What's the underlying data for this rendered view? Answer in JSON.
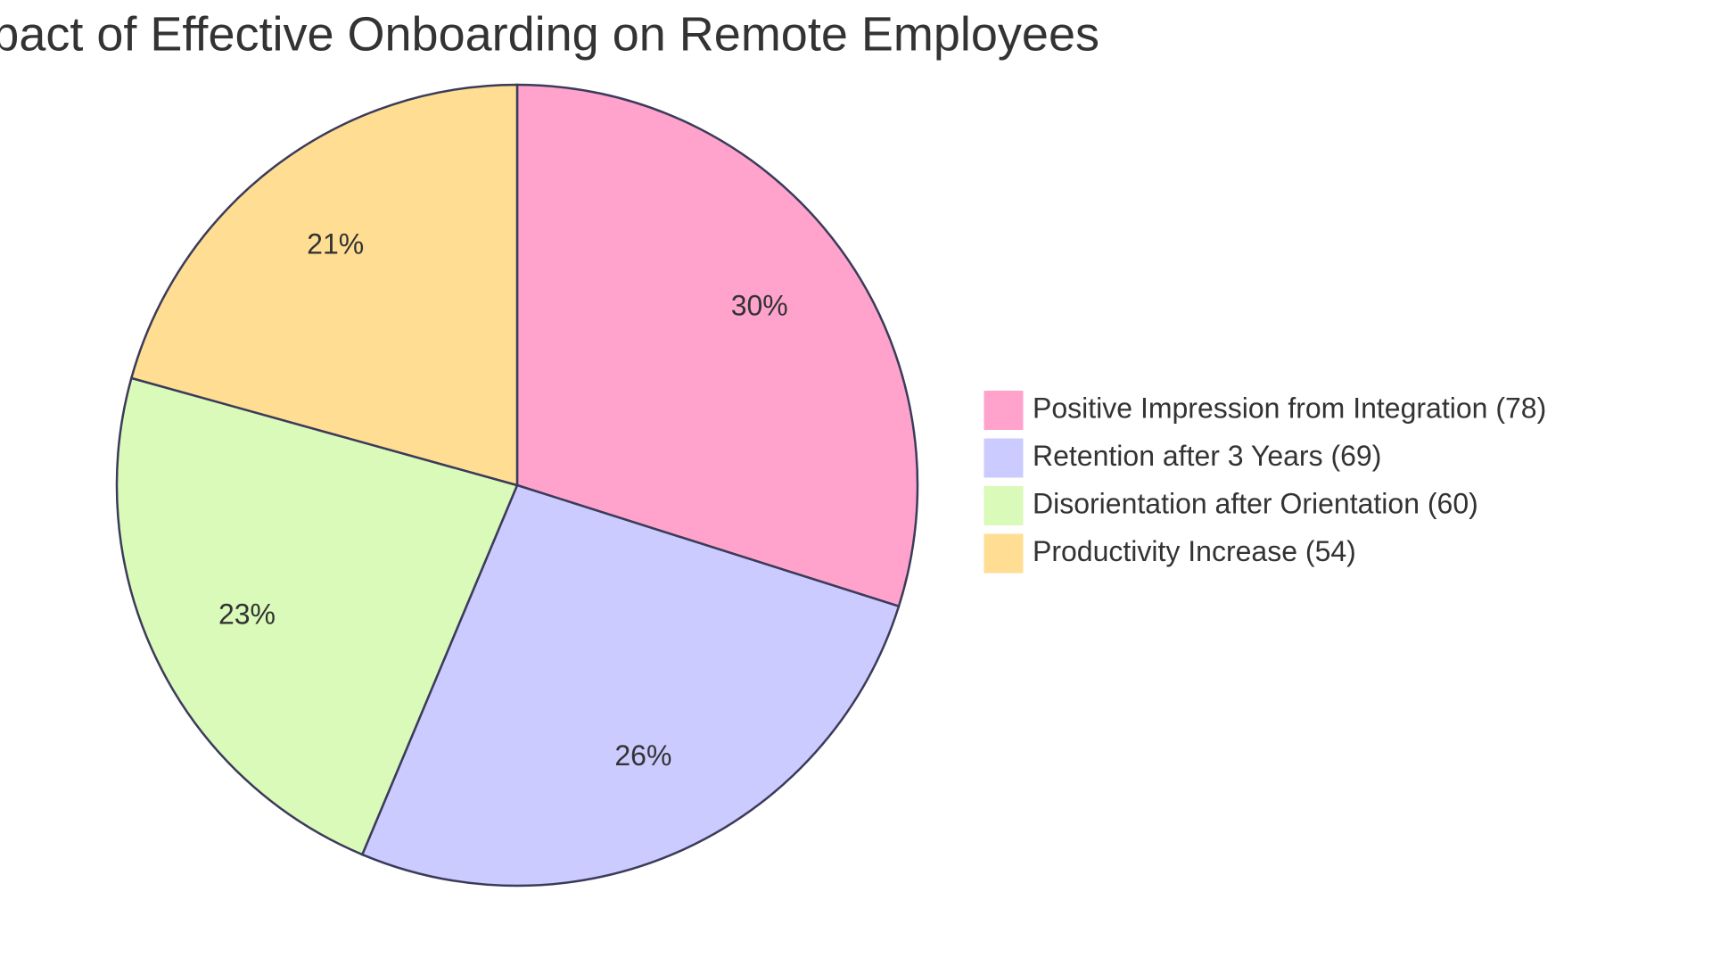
{
  "chart_data": {
    "type": "pie",
    "title": "Impact of Effective Onboarding on Remote Employees",
    "categories": [
      "Positive Impression from Integration (78)",
      "Retention after 3 Years (69)",
      "Disorientation after Orientation (60)",
      "Productivity Increase (54)"
    ],
    "values": [
      78,
      69,
      60,
      54
    ],
    "value_labels": [
      "30%",
      "26%",
      "23%",
      "21%"
    ],
    "colors": [
      "#ffa3cd",
      "#cbcbff",
      "#dafab9",
      "#ffde93"
    ],
    "legend": "right"
  }
}
